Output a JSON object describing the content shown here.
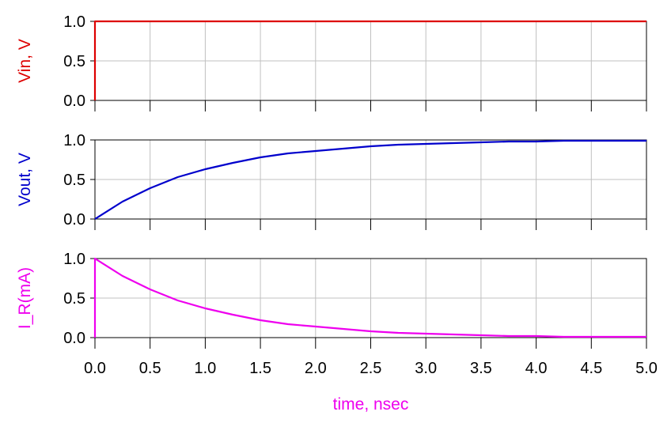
{
  "chart_data": [
    {
      "type": "line",
      "ylabel": "Vin, V",
      "color": "#dd0000",
      "xlim": [
        0,
        5
      ],
      "ylim": [
        0,
        1
      ],
      "xticks": [
        0,
        0.5,
        1,
        1.5,
        2,
        2.5,
        3,
        3.5,
        4,
        4.5,
        5
      ],
      "yticks": [
        "0.0",
        "0.5",
        "1.0"
      ],
      "ytick_values": [
        0,
        0.5,
        1
      ],
      "grid": true,
      "series": [
        {
          "x": [
            0,
            0,
            5
          ],
          "y": [
            0,
            1,
            1
          ]
        }
      ]
    },
    {
      "type": "line",
      "ylabel": "Vout, V",
      "color": "#0000cc",
      "xlim": [
        0,
        5
      ],
      "ylim": [
        0,
        1
      ],
      "xticks": [
        0,
        0.5,
        1,
        1.5,
        2,
        2.5,
        3,
        3.5,
        4,
        4.5,
        5
      ],
      "yticks": [
        "0.0",
        "0.5",
        "1.0"
      ],
      "ytick_values": [
        0,
        0.5,
        1
      ],
      "grid": true,
      "series": [
        {
          "x": [
            0,
            0.25,
            0.5,
            0.75,
            1,
            1.25,
            1.5,
            1.75,
            2,
            2.25,
            2.5,
            2.75,
            3,
            3.25,
            3.5,
            3.75,
            4,
            4.25,
            4.5,
            4.75,
            5
          ],
          "y": [
            0,
            0.22,
            0.39,
            0.53,
            0.63,
            0.71,
            0.78,
            0.83,
            0.86,
            0.89,
            0.92,
            0.94,
            0.95,
            0.96,
            0.97,
            0.98,
            0.98,
            0.99,
            0.99,
            0.99,
            0.99
          ]
        }
      ]
    },
    {
      "type": "line",
      "ylabel": "I_R(mA)",
      "color": "#ee00ee",
      "xlim": [
        0,
        5
      ],
      "ylim": [
        0,
        1
      ],
      "xticks": [
        0,
        0.5,
        1,
        1.5,
        2,
        2.5,
        3,
        3.5,
        4,
        4.5,
        5
      ],
      "yticks": [
        "0.0",
        "0.5",
        "1.0"
      ],
      "ytick_values": [
        0,
        0.5,
        1
      ],
      "grid": true,
      "xlabel": "time, nsec",
      "xtick_labels": [
        "0.0",
        "0.5",
        "1.0",
        "1.5",
        "2.0",
        "2.5",
        "3.0",
        "3.5",
        "4.0",
        "4.5",
        "5.0"
      ],
      "series": [
        {
          "x": [
            0,
            0,
            0.25,
            0.5,
            0.75,
            1,
            1.25,
            1.5,
            1.75,
            2,
            2.25,
            2.5,
            2.75,
            3,
            3.25,
            3.5,
            3.75,
            4,
            4.25,
            4.5,
            4.75,
            5
          ],
          "y": [
            0,
            1,
            0.78,
            0.61,
            0.47,
            0.37,
            0.29,
            0.22,
            0.17,
            0.14,
            0.11,
            0.08,
            0.06,
            0.05,
            0.04,
            0.03,
            0.02,
            0.02,
            0.01,
            0.01,
            0.01,
            0.01
          ]
        }
      ]
    }
  ]
}
